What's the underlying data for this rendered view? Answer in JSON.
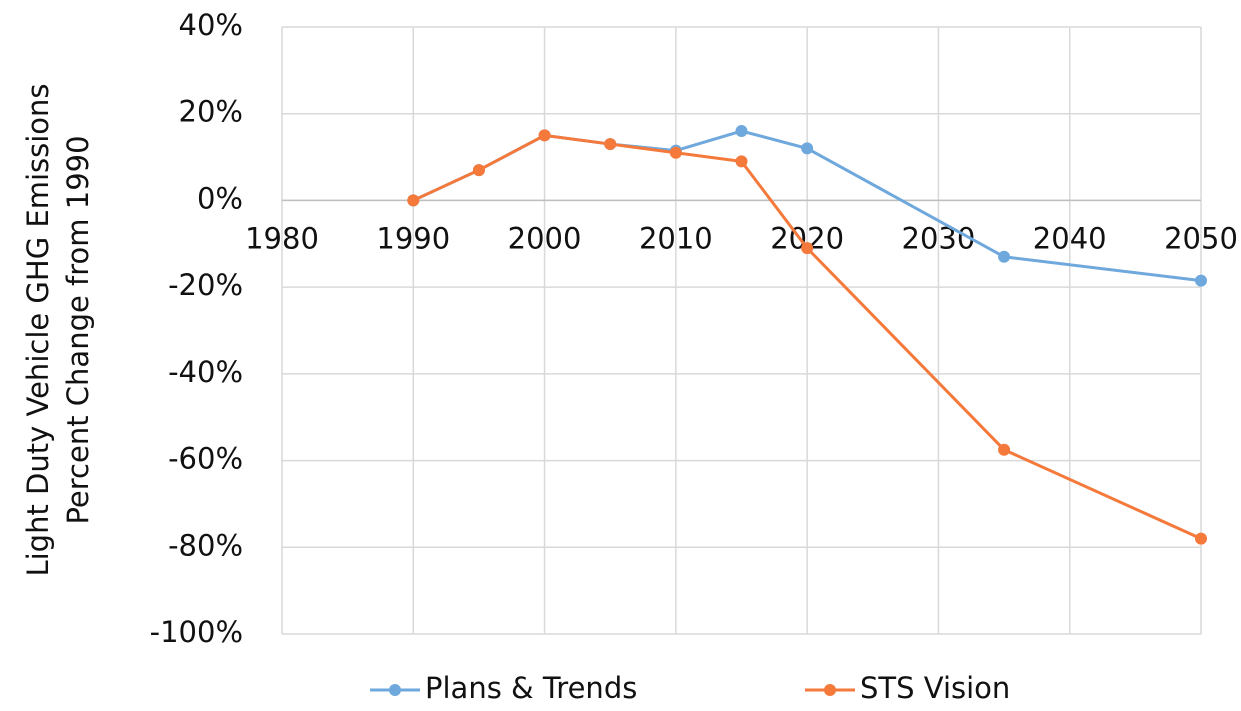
{
  "chart_data": {
    "type": "line",
    "y_label": [
      "Light Duty  Vehicle GHG Emissions",
      "Percent Change from 1990"
    ],
    "series": [
      {
        "name": "Plans & Trends",
        "color": "#6fa8dc",
        "x": [
          1990,
          1995,
          2000,
          2005,
          2010,
          2015,
          2020,
          2035,
          2050
        ],
        "values": [
          0,
          7,
          15,
          13,
          11.5,
          16,
          12,
          -13,
          -18.5
        ]
      },
      {
        "name": "STS Vision",
        "color": "#f4793b",
        "x": [
          1990,
          1995,
          2000,
          2005,
          2010,
          2015,
          2020,
          2035,
          2050
        ],
        "values": [
          0,
          7,
          15,
          13,
          11,
          9,
          -11,
          -57.5,
          -78
        ]
      }
    ],
    "xlim": [
      1980,
      2050
    ],
    "xticks": [
      1980,
      1990,
      2000,
      2010,
      2020,
      2030,
      2040,
      2050
    ],
    "ylim": [
      -100,
      40
    ],
    "yticks": [
      {
        "value": -100,
        "label": "-100%"
      },
      {
        "value": -80,
        "label": "-80%"
      },
      {
        "value": -60,
        "label": "-60%"
      },
      {
        "value": -40,
        "label": "-40%"
      },
      {
        "value": -20,
        "label": "-20%"
      },
      {
        "value": 0,
        "label": "0%"
      },
      {
        "value": 20,
        "label": "20%"
      },
      {
        "value": 40,
        "label": "40%"
      }
    ],
    "grid": true,
    "legend": "bottom"
  }
}
